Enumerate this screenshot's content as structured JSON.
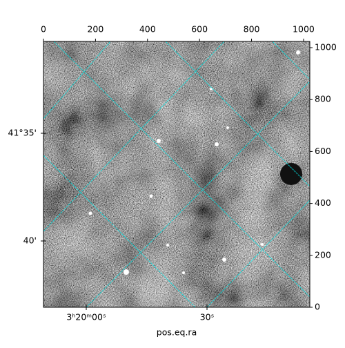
{
  "chart_data": {
    "type": "image",
    "xlabel": "pos.eq.ra",
    "xlim": [
      0,
      1024
    ],
    "xticks": [
      0,
      200,
      400,
      600,
      800,
      1000
    ],
    "ylim": [
      0,
      1024
    ],
    "yticks": [
      0,
      200,
      400,
      600,
      800,
      1000
    ],
    "world_y_labels": [
      "41°35'",
      "40'"
    ],
    "world_x_labels": [
      "3ʰ20ᵐ00ˢ",
      "30ˢ"
    ],
    "grid_color": "#00e5e5"
  }
}
